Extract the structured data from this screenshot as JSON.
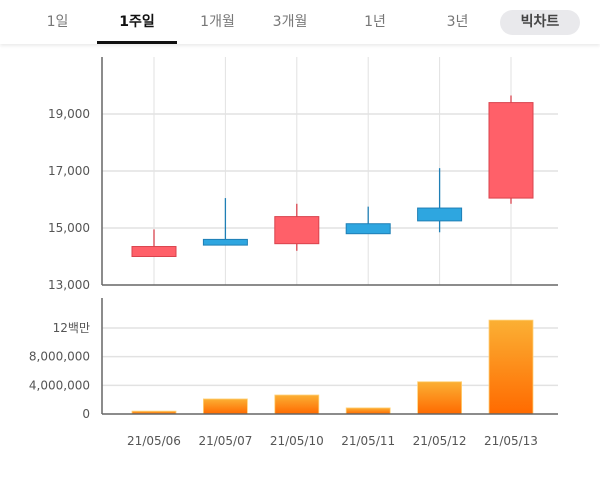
{
  "tabs": [
    {
      "label": "1일",
      "active": false
    },
    {
      "label": "1주일",
      "active": true
    },
    {
      "label": "1개월",
      "active": false
    },
    {
      "label": "3개월",
      "active": false
    },
    {
      "label": "1년",
      "active": false
    },
    {
      "label": "3년",
      "active": false
    }
  ],
  "big_chart_label": "빅차트",
  "colors": {
    "up": "#ff6069",
    "down": "#2ea6e0",
    "volume_top": "#fbb034",
    "volume_bottom": "#ff6a00",
    "grid": "#e2e2e2",
    "axis": "#666666"
  },
  "chart_data": [
    {
      "type": "candlestick",
      "categories": [
        "21/05/06",
        "21/05/07",
        "21/05/10",
        "21/05/11",
        "21/05/12",
        "21/05/13"
      ],
      "series": [
        {
          "open": 14000,
          "close": 14350,
          "high": 14950,
          "low": 14000
        },
        {
          "open": 14600,
          "close": 14400,
          "high": 16050,
          "low": 14400
        },
        {
          "open": 14450,
          "close": 15400,
          "high": 15850,
          "low": 14200
        },
        {
          "open": 15150,
          "close": 14800,
          "high": 15750,
          "low": 14800
        },
        {
          "open": 15700,
          "close": 15250,
          "high": 17100,
          "low": 14850
        },
        {
          "open": 16050,
          "close": 19400,
          "high": 19650,
          "low": 15850
        }
      ],
      "ylim": [
        13000,
        20500
      ],
      "yticks": [
        13000,
        15000,
        17000,
        19000
      ],
      "ytick_labels": [
        "13,000",
        "15,000",
        "17,000",
        "19,000"
      ],
      "grid": true
    },
    {
      "type": "bar",
      "categories": [
        "21/05/06",
        "21/05/07",
        "21/05/10",
        "21/05/11",
        "21/05/12",
        "21/05/13"
      ],
      "values": [
        400000,
        2100000,
        2650000,
        850000,
        4500000,
        13100000
      ],
      "ylim": [
        0,
        13500000
      ],
      "yticks": [
        0,
        4000000,
        8000000,
        12000000
      ],
      "ytick_labels": [
        "0",
        "4,000,000",
        "8,000,000",
        "12백만"
      ],
      "grid": true
    }
  ]
}
